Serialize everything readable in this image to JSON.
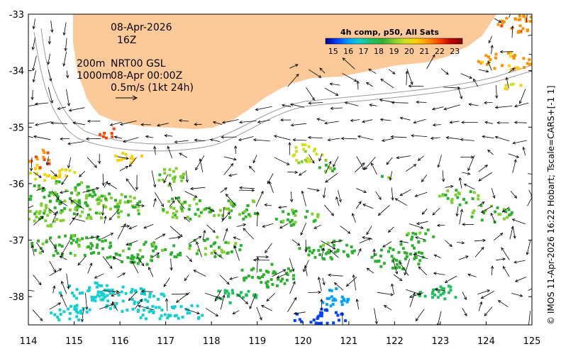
{
  "map": {
    "datetime": "08-Apr-2026",
    "hour": "16Z",
    "depth_line_1": "200m",
    "depth_line_2": "1000m",
    "model": "NRT00 GSL",
    "model_time": "08-Apr 00:00Z",
    "vector_scale": "0.5m/s (1kt 24h)",
    "credit": "© IMOS 11-Apr-2026 16:22 Hobart; Tscale=CARS+[-1 1]",
    "land_color": "#fcc999"
  },
  "colorbar": {
    "title": "4h comp, p50, All Sats",
    "ticks": [
      "15",
      "16",
      "17",
      "18",
      "19",
      "20",
      "21",
      "22",
      "23"
    ],
    "range": [
      14.5,
      23.5
    ],
    "colors": [
      "#00008f",
      "#0040ff",
      "#00a0ff",
      "#10d0d0",
      "#20c060",
      "#30b030",
      "#80d030",
      "#d0e020",
      "#ffd000",
      "#ff9000",
      "#ff4000",
      "#c00000",
      "#800000"
    ]
  },
  "axes": {
    "x_labels": [
      "114",
      "115",
      "116",
      "117",
      "118",
      "119",
      "120",
      "121",
      "122",
      "123",
      "124",
      "125"
    ],
    "y_labels": [
      "-33",
      "-34",
      "-35",
      "-36",
      "-37",
      "-38"
    ],
    "x_range": [
      114,
      125
    ],
    "y_range": [
      -38.5,
      -33
    ]
  }
}
